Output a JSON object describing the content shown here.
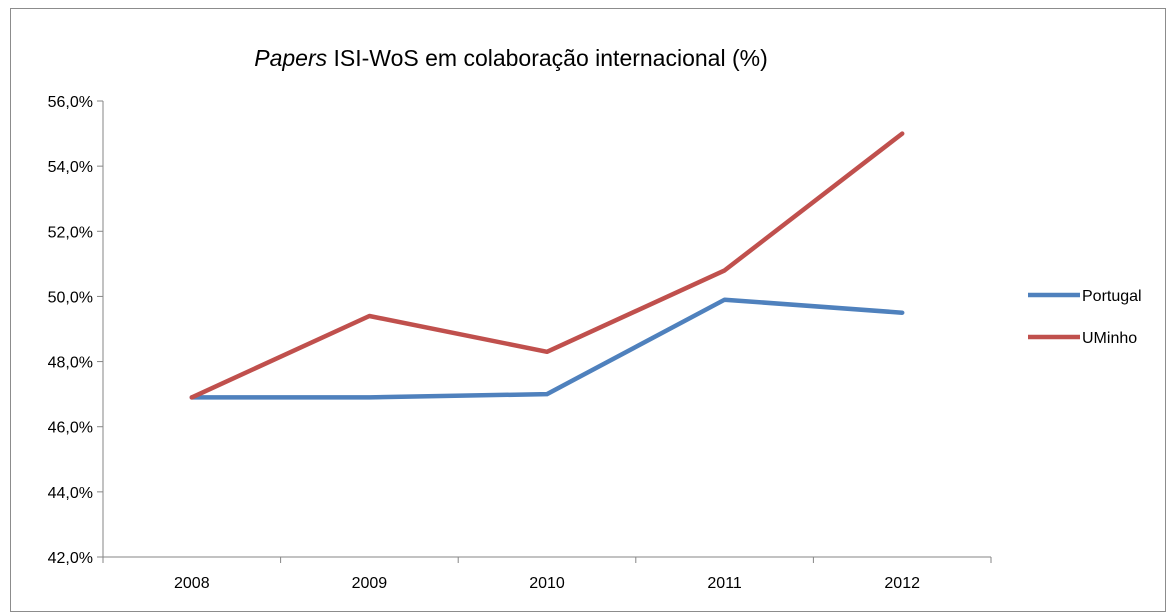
{
  "chart_data": {
    "type": "line",
    "title_italic": "Papers",
    "title_rest": " ISI-WoS em colaboração internacional (%)",
    "categories": [
      "2008",
      "2009",
      "2010",
      "2011",
      "2012"
    ],
    "yticks": [
      "42,0%",
      "44,0%",
      "46,0%",
      "48,0%",
      "50,0%",
      "52,0%",
      "54,0%",
      "56,0%"
    ],
    "ylim": [
      42,
      56
    ],
    "ytick_step": 2,
    "grid": false,
    "legend_position": "right",
    "series": [
      {
        "name": "Portugal",
        "color": "#4f81bd",
        "values": [
          46.9,
          46.9,
          47.0,
          49.9,
          49.5
        ]
      },
      {
        "name": "UMinho",
        "color": "#c0504d",
        "values": [
          46.9,
          49.4,
          48.3,
          50.8,
          55.0
        ]
      }
    ]
  }
}
